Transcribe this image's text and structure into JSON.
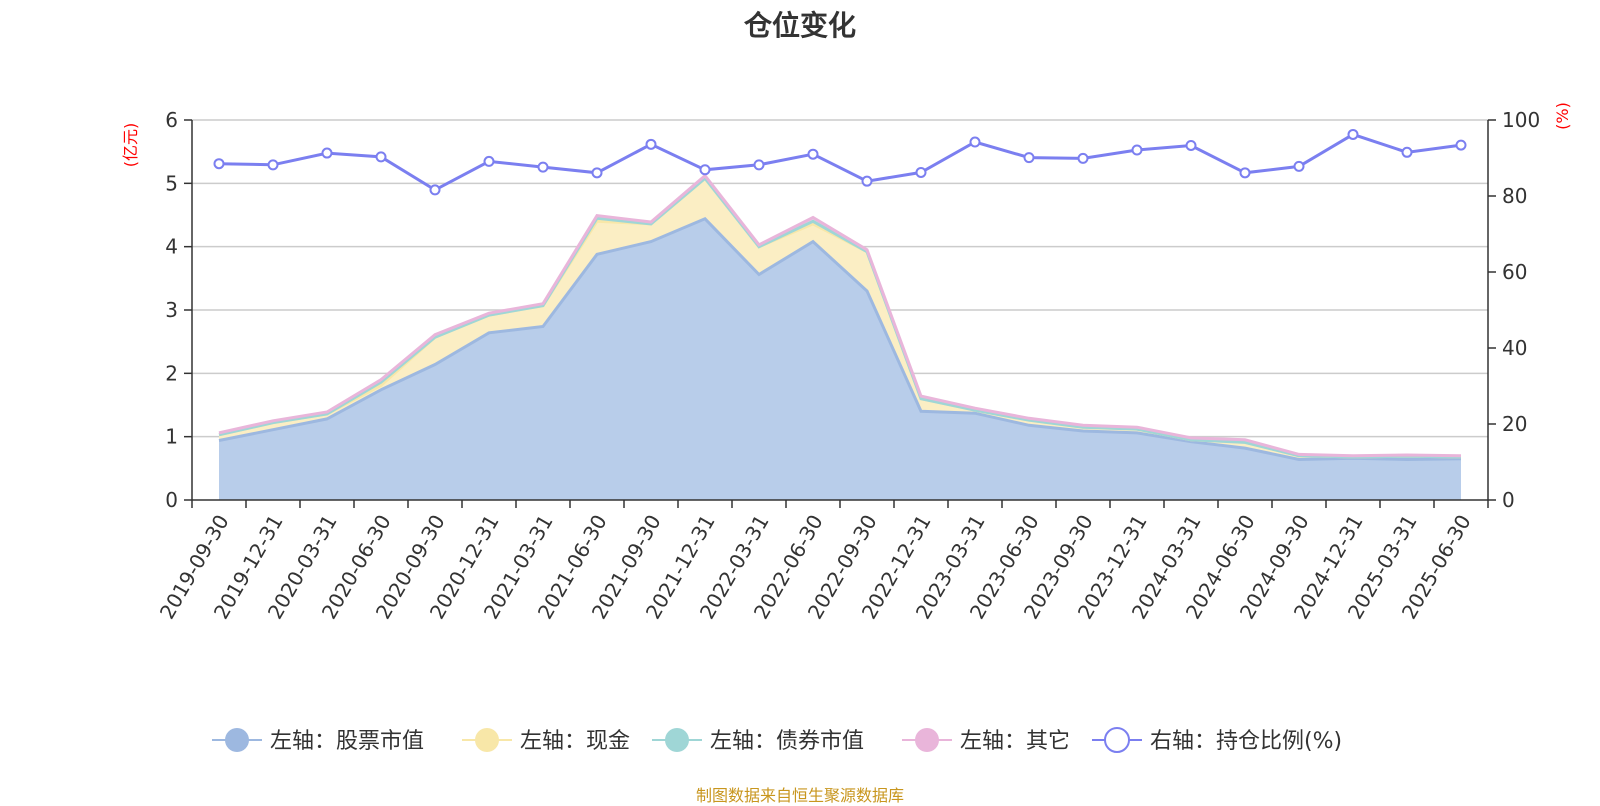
{
  "chart_data": {
    "type": "area",
    "title": "仓位变化",
    "source": "制图数据来自恒生聚源数据库",
    "left_axis": {
      "unit": "(亿元)",
      "ylim": [
        0,
        6
      ],
      "ticks": [
        0,
        1,
        2,
        3,
        4,
        5,
        6
      ]
    },
    "right_axis": {
      "unit": "(%)",
      "ylim": [
        0,
        100
      ],
      "ticks": [
        0,
        20,
        40,
        60,
        80,
        100
      ]
    },
    "categories": [
      "2019-09-30",
      "2019-12-31",
      "2020-03-31",
      "2020-06-30",
      "2020-09-30",
      "2020-12-31",
      "2021-03-31",
      "2021-06-30",
      "2021-09-30",
      "2021-12-31",
      "2022-03-31",
      "2022-06-30",
      "2022-09-30",
      "2022-12-31",
      "2023-03-31",
      "2023-06-30",
      "2023-09-30",
      "2023-12-31",
      "2024-03-31",
      "2024-06-30",
      "2024-09-30",
      "2024-12-31",
      "2025-03-31",
      "2025-06-30"
    ],
    "stacked": true,
    "series": [
      {
        "name": "左轴：股票市值",
        "axis": "left",
        "color": "#9db8e0",
        "fill": "#b8cdea",
        "values": [
          0.94,
          1.11,
          1.28,
          1.74,
          2.14,
          2.64,
          2.74,
          3.88,
          4.08,
          4.44,
          3.56,
          4.08,
          3.3,
          1.4,
          1.37,
          1.18,
          1.09,
          1.06,
          0.92,
          0.82,
          0.64,
          0.66,
          0.64,
          0.65
        ]
      },
      {
        "name": "左轴：现金",
        "axis": "left",
        "color": "#f8e7a8",
        "fill": "#fbeec4",
        "values": [
          0.09,
          0.11,
          0.08,
          0.07,
          0.43,
          0.28,
          0.33,
          0.52,
          0.28,
          0.64,
          0.44,
          0.28,
          0.62,
          0.2,
          0.05,
          0.08,
          0.06,
          0.06,
          0.03,
          0.09,
          0.06,
          0.02,
          0.05,
          0.03
        ]
      },
      {
        "name": "左轴：债券市值",
        "axis": "left",
        "color": "#9fd6d6",
        "fill": "#c7e9e9",
        "values": [
          0,
          0,
          0,
          0.05,
          0,
          0,
          0,
          0.05,
          0,
          0,
          0,
          0.04,
          0,
          0,
          0,
          0,
          0,
          0,
          0,
          0,
          0,
          0,
          0,
          0
        ]
      },
      {
        "name": "左轴：其它",
        "axis": "left",
        "color": "#e9b5da",
        "fill": "#f2d2e9",
        "values": [
          0.03,
          0.03,
          0.03,
          0.04,
          0.04,
          0.03,
          0.03,
          0.04,
          0.03,
          0.04,
          0.03,
          0.06,
          0.03,
          0.04,
          0.03,
          0.03,
          0.03,
          0.03,
          0.03,
          0.04,
          0.02,
          0.02,
          0.02,
          0.02
        ]
      },
      {
        "name": "右轴：持仓比例(%)",
        "axis": "right",
        "type": "line",
        "color": "#7b7ff0",
        "values": [
          88.5,
          88.2,
          91.3,
          90.3,
          81.6,
          89.1,
          87.6,
          86.1,
          93.6,
          86.9,
          88.2,
          91.0,
          83.9,
          86.2,
          94.2,
          90.1,
          89.9,
          92.1,
          93.3,
          86.1,
          87.8,
          96.2,
          91.5,
          93.4
        ]
      }
    ]
  }
}
